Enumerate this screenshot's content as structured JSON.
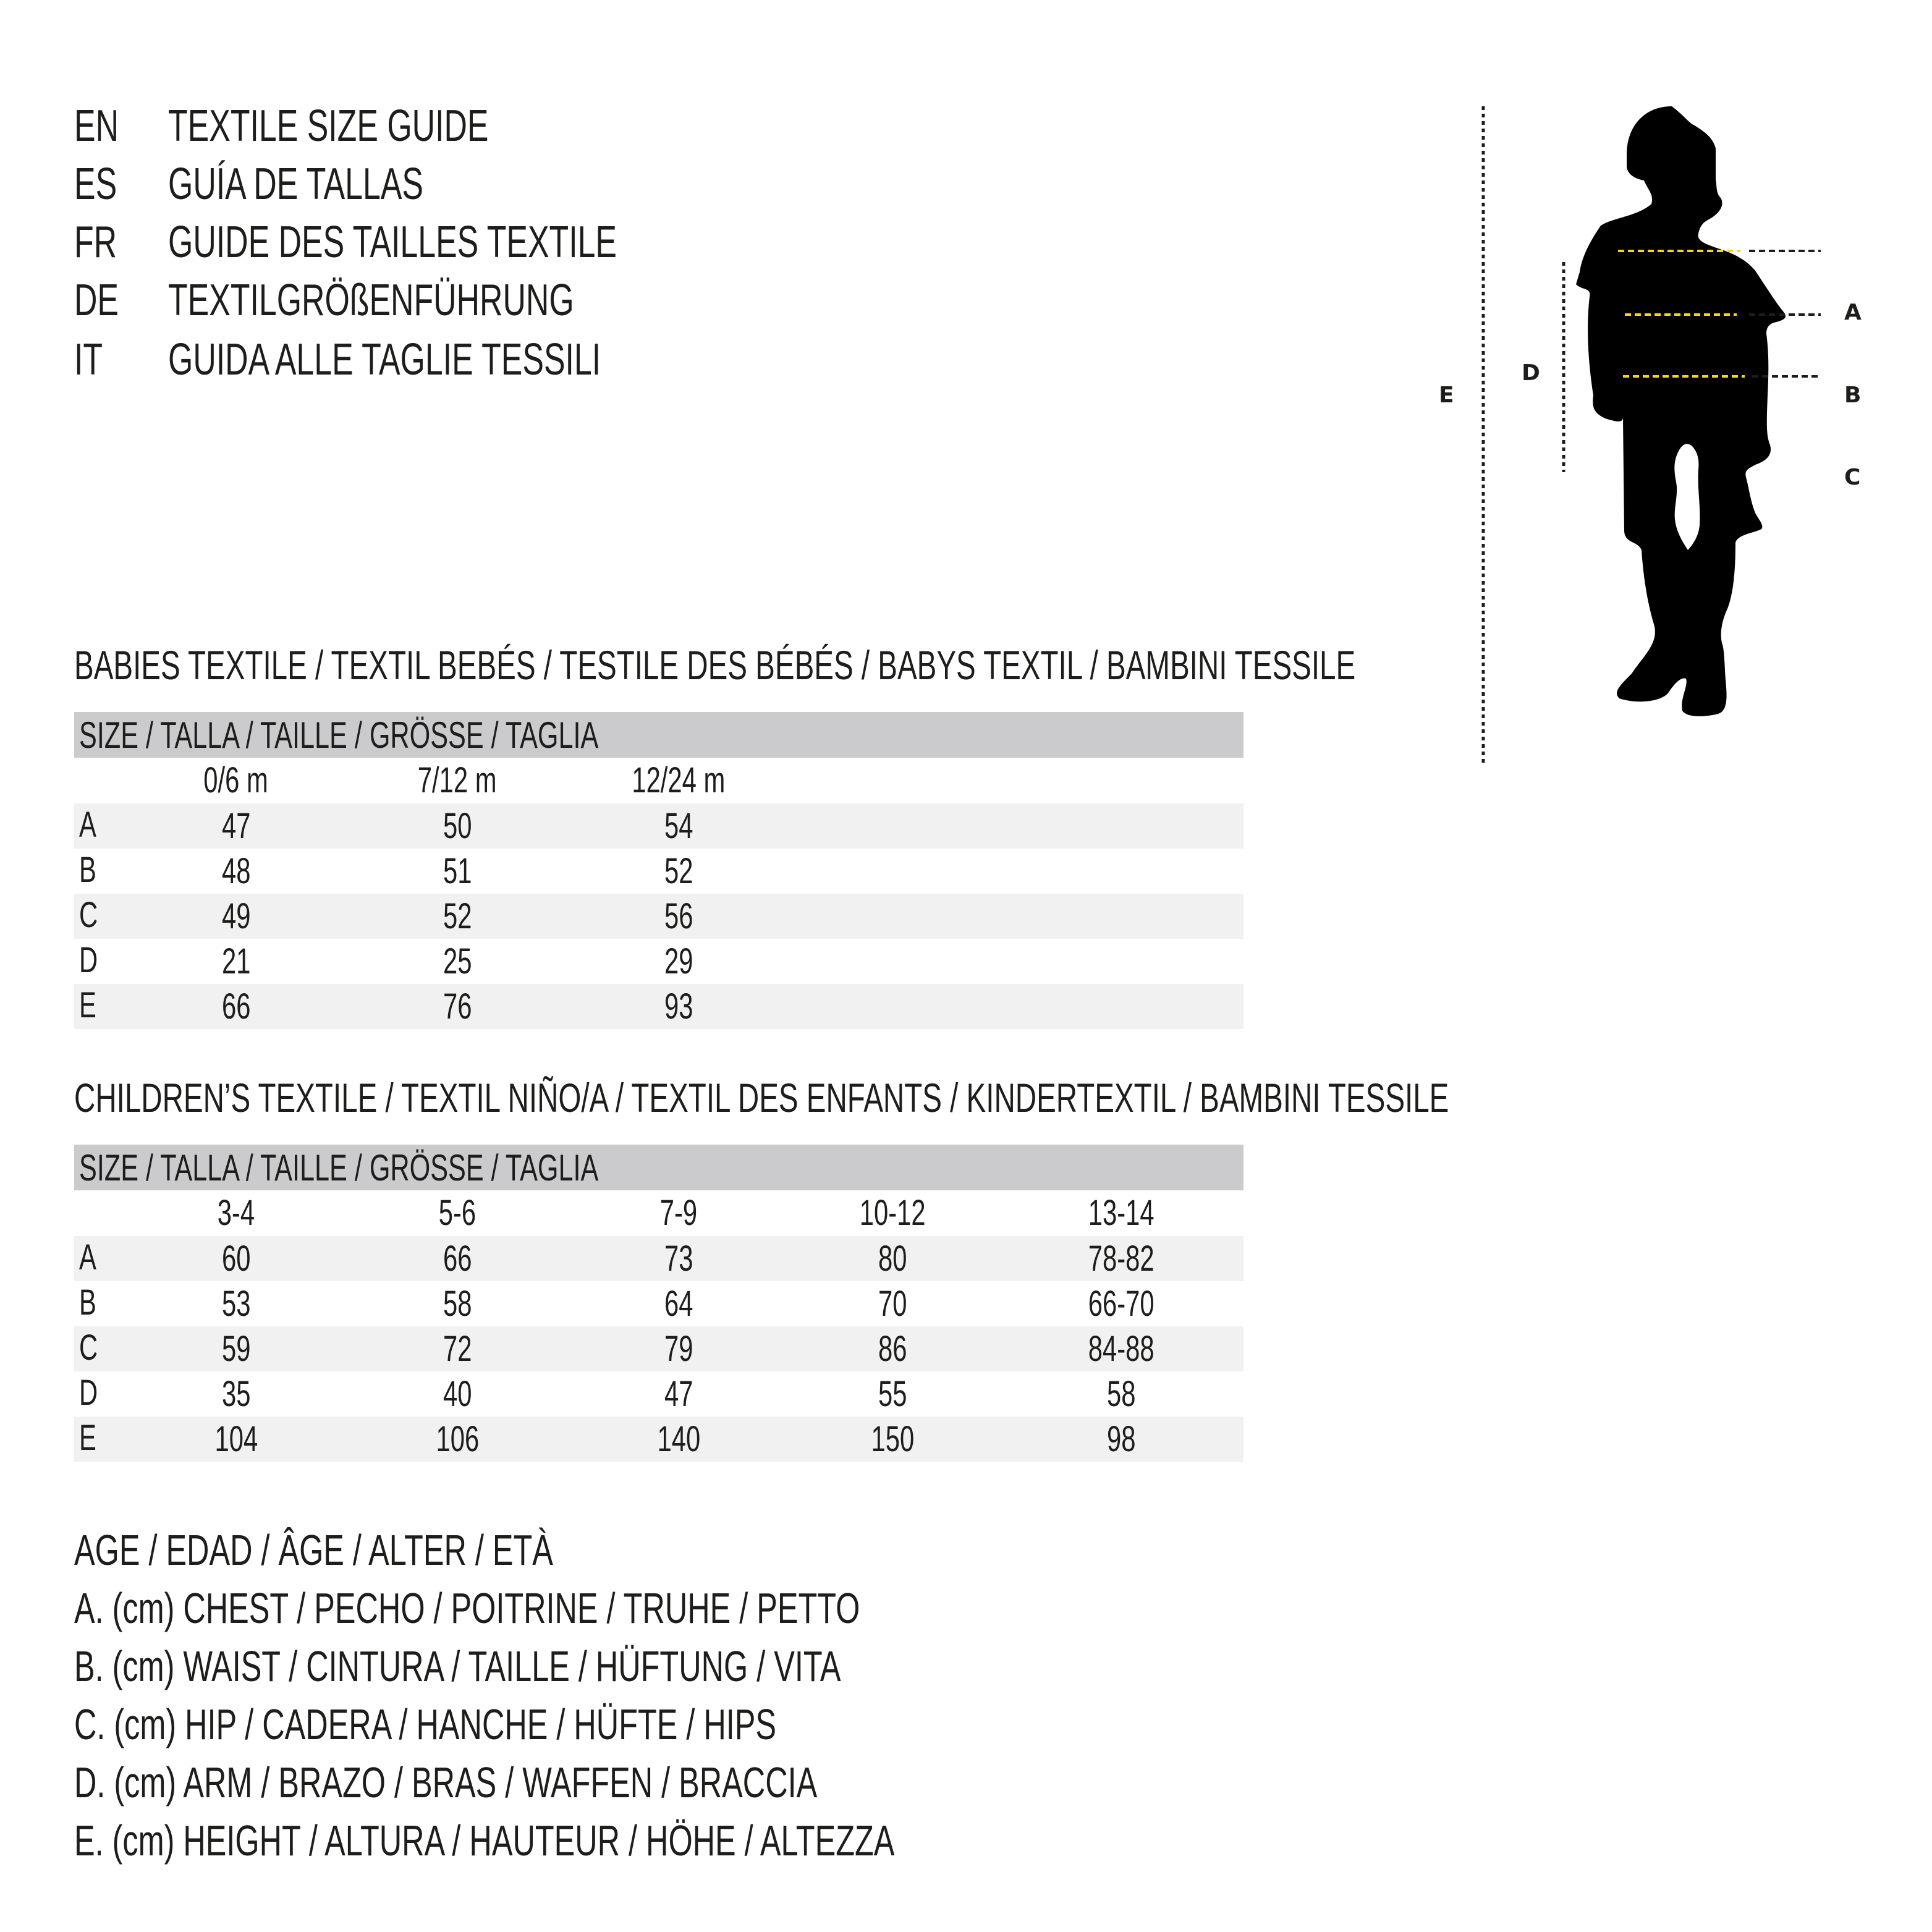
{
  "title_lines": [
    {
      "code": "EN",
      "text": "TEXTILE SIZE GUIDE"
    },
    {
      "code": "ES",
      "text": "GUÍA DE TALLAS"
    },
    {
      "code": "FR",
      "text": "GUIDE DES TAILLES TEXTILE"
    },
    {
      "code": "DE",
      "text": "TEXTILGRÖßENFÜHRUNG"
    },
    {
      "code": "IT",
      "text": "GUIDA ALLE TAGLIE TESSILI"
    }
  ],
  "figure": {
    "labels": {
      "A": "A",
      "B": "B",
      "C": "C",
      "D": "D",
      "E": "E"
    },
    "colors": {
      "silhouette": "#000000",
      "measure_line": "#f5d90a",
      "guide_line": "#1d1d1b"
    }
  },
  "babies": {
    "title": "BABIES TEXTILE / TEXTIL BEBÉS / TESTILE DES BÉBÉS / BABYS TEXTIL / BAMBINI TESSILE",
    "header": "SIZE / TALLA / TAILLE / GRÖSSE / TAGLIA",
    "columns": [
      "0/6 m",
      "7/12 m",
      "12/24 m"
    ],
    "rows": [
      {
        "label": "A",
        "values": [
          "47",
          "50",
          "54"
        ]
      },
      {
        "label": "B",
        "values": [
          "48",
          "51",
          "52"
        ]
      },
      {
        "label": "C",
        "values": [
          "49",
          "52",
          "56"
        ]
      },
      {
        "label": "D",
        "values": [
          "21",
          "25",
          "29"
        ]
      },
      {
        "label": "E",
        "values": [
          "66",
          "76",
          "93"
        ]
      }
    ]
  },
  "children": {
    "title": "CHILDREN’S TEXTILE / TEXTIL NIÑO/A / TEXTIL DES ENFANTS / KINDERTEXTIL / BAMBINI TESSILE",
    "header": "SIZE / TALLA / TAILLE / GRÖSSE / TAGLIA",
    "columns": [
      "3-4",
      "5-6",
      "7-9",
      "10-12",
      "13-14"
    ],
    "rows": [
      {
        "label": "A",
        "values": [
          "60",
          "66",
          "73",
          "80",
          "78-82"
        ]
      },
      {
        "label": "B",
        "values": [
          "53",
          "58",
          "64",
          "70",
          "66-70"
        ]
      },
      {
        "label": "C",
        "values": [
          "59",
          "72",
          "79",
          "86",
          "84-88"
        ]
      },
      {
        "label": "D",
        "values": [
          "35",
          "40",
          "47",
          "55",
          "58"
        ]
      },
      {
        "label": "E",
        "values": [
          "104",
          "106",
          "140",
          "150",
          "98"
        ]
      }
    ]
  },
  "legend": [
    "AGE / EDAD / ÂGE / ALTER / ETÀ",
    "A. (cm) CHEST / PECHO / POITRINE / TRUHE / PETTO",
    "B. (cm) WAIST / CINTURA / TAILLE / HÜFTUNG / VITA",
    "C. (cm) HIP / CADERA / HANCHE / HÜFTE / HIPS",
    "D. (cm) ARM / BRAZO / BRAS / WAFFEN / BRACCIA",
    "E. (cm) HEIGHT / ALTURA / HAUTEUR / HÖHE / ALTEZZA"
  ]
}
